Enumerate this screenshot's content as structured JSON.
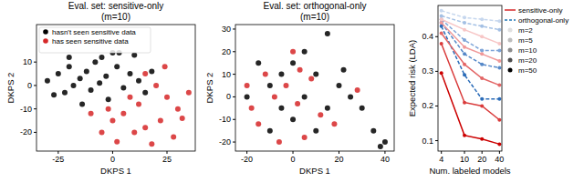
{
  "chart_data": [
    {
      "type": "scatter",
      "title": "Eval. set: sensitive-only",
      "subtitle": "(m=10)",
      "x_label": "DKPS 1",
      "y_label": "DKPS 2",
      "xlim": [
        -35,
        38
      ],
      "ylim": [
        -28,
        26
      ],
      "xticks": [
        -25,
        0,
        25
      ],
      "yticks": [
        -20,
        -10,
        0,
        10
      ],
      "grid": false,
      "legend": "upper left",
      "series": [
        {
          "name": "hasn't seen sensitive data",
          "color": "#000000",
          "marker": "circle",
          "x": [
            -30,
            -25,
            -22,
            -20,
            -18,
            -15,
            -12,
            -10,
            -8,
            -5,
            -3,
            0,
            2,
            5,
            -2,
            -14,
            -27,
            8,
            10,
            12,
            15,
            -6,
            3,
            -20,
            18
          ],
          "values": [
            2,
            5,
            -3,
            8,
            0,
            3,
            6,
            -2,
            10,
            12,
            4,
            14,
            8,
            -1,
            -6,
            -8,
            -4,
            5,
            13,
            2,
            -3,
            1,
            14,
            12,
            6
          ]
        },
        {
          "name": "has seen sensitive data",
          "color": "#d62728",
          "marker": "circle",
          "x": [
            20,
            25,
            30,
            22,
            10,
            15,
            5,
            0,
            -5,
            28,
            35,
            12,
            18,
            8,
            -10,
            24,
            32,
            2,
            15,
            -2
          ],
          "values": [
            0,
            -5,
            -10,
            -15,
            -20,
            -18,
            -12,
            -15,
            -20,
            -22,
            -3,
            -8,
            -25,
            -5,
            -12,
            8,
            -14,
            -24,
            5,
            -10
          ]
        }
      ]
    },
    {
      "type": "scatter",
      "title": "Eval. set: orthogonal-only",
      "subtitle": "(m=10)",
      "x_label": "DKPS 1",
      "y_label": "DKPS 2",
      "xlim": [
        -25,
        44
      ],
      "ylim": [
        -24,
        32
      ],
      "xticks": [
        -20,
        0,
        20,
        40
      ],
      "yticks": [
        -20,
        -10,
        0,
        10,
        20,
        30
      ],
      "grid": false,
      "series": [
        {
          "color": "#000000",
          "marker": "circle",
          "x": [
            -15,
            -10,
            -5,
            0,
            5,
            10,
            15,
            20,
            25,
            30,
            35,
            40,
            -20,
            -5,
            0,
            10,
            5,
            -10,
            15,
            22,
            38
          ],
          "values": [
            15,
            5,
            10,
            15,
            20,
            10,
            28,
            5,
            0,
            -5,
            -15,
            -20,
            0,
            -5,
            -10,
            -15,
            0,
            -15,
            -5,
            12,
            -22
          ]
        },
        {
          "color": "#d62728",
          "marker": "circle",
          "x": [
            -18,
            -12,
            -8,
            -3,
            2,
            8,
            12,
            -15,
            0,
            5,
            -6,
            18,
            28,
            -20,
            3
          ],
          "values": [
            -5,
            10,
            0,
            5,
            -3,
            8,
            -8,
            -12,
            20,
            -18,
            -20,
            -12,
            3,
            5,
            12
          ]
        }
      ]
    },
    {
      "type": "line",
      "x_label": "Num. labeled models",
      "y_label": "Expected risk (LDA)",
      "log": "x",
      "xlim": [
        3.5,
        44
      ],
      "ylim": [
        0.07,
        0.49
      ],
      "xticks": [
        4,
        10,
        20,
        40
      ],
      "yticks": [
        0.1,
        0.2,
        0.3,
        0.4
      ],
      "grid": false,
      "legend": "right",
      "x": [
        4,
        10,
        20,
        40
      ],
      "legend_entries": [
        {
          "name": "sensitive-only",
          "color": "#d62728",
          "line_style": "solid"
        },
        {
          "name": "orthogonal-only",
          "color": "#1f77b4",
          "line_style": "dashed"
        },
        {
          "name": "m=2",
          "color": "#e0e0e0",
          "marker": "circle"
        },
        {
          "name": "m=5",
          "color": "#bdbdbd",
          "marker": "circle"
        },
        {
          "name": "m=10",
          "color": "#8c8c8c",
          "marker": "circle"
        },
        {
          "name": "m=20",
          "color": "#4d4d4d",
          "marker": "circle"
        },
        {
          "name": "m=50",
          "color": "#000000",
          "marker": "circle"
        }
      ],
      "series": [
        {
          "color": "#c6d7ee",
          "line_style": "dashed",
          "marker": "circle",
          "values": [
            0.475,
            0.455,
            0.45,
            0.445
          ]
        },
        {
          "color": "#a4c0e4",
          "line_style": "dashed",
          "marker": "circle",
          "values": [
            0.46,
            0.44,
            0.43,
            0.42
          ]
        },
        {
          "color": "#7ea5d8",
          "line_style": "dashed",
          "marker": "circle",
          "values": [
            0.45,
            0.39,
            0.36,
            0.36
          ]
        },
        {
          "color": "#5588c8",
          "line_style": "dashed",
          "marker": "circle",
          "values": [
            0.44,
            0.35,
            0.32,
            0.31
          ]
        },
        {
          "color": "#2b6cb8",
          "line_style": "dashed",
          "marker": "circle",
          "values": [
            0.43,
            0.29,
            0.22,
            0.22
          ]
        },
        {
          "color": "#f7c6c6",
          "line_style": "solid",
          "marker": "circle",
          "values": [
            0.45,
            0.42,
            0.4,
            0.38
          ]
        },
        {
          "color": "#f09999",
          "line_style": "solid",
          "marker": "circle",
          "values": [
            0.44,
            0.37,
            0.35,
            0.33
          ]
        },
        {
          "color": "#e36666",
          "line_style": "solid",
          "marker": "circle",
          "values": [
            0.41,
            0.32,
            0.28,
            0.26
          ]
        },
        {
          "color": "#d93a3a",
          "line_style": "solid",
          "marker": "circle",
          "values": [
            0.38,
            0.21,
            0.2,
            0.16
          ]
        },
        {
          "color": "#cc0000",
          "line_style": "solid",
          "marker": "circle",
          "values": [
            0.295,
            0.115,
            0.105,
            0.09
          ]
        }
      ]
    }
  ]
}
